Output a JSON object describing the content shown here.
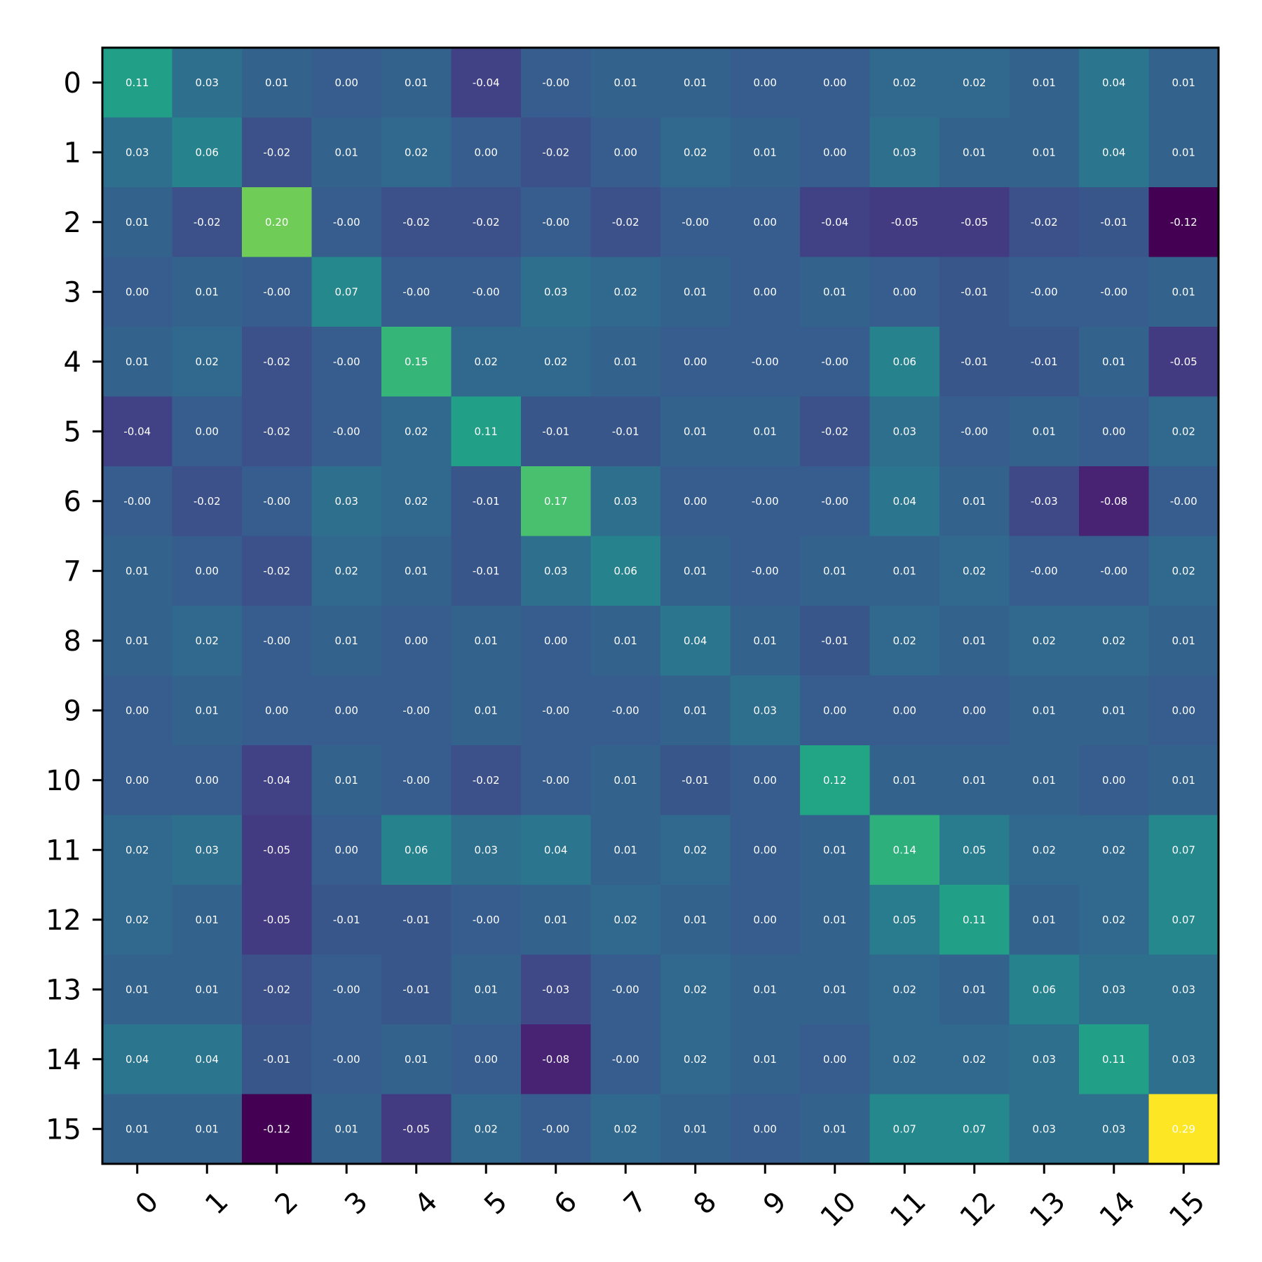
{
  "chart_data": {
    "type": "heatmap",
    "title": "",
    "xlabel": "",
    "ylabel": "",
    "colormap": "viridis",
    "vmin": -0.12,
    "vmax": 0.29,
    "grid": false,
    "legend": "none",
    "x_categories": [
      "0",
      "1",
      "2",
      "3",
      "4",
      "5",
      "6",
      "7",
      "8",
      "9",
      "10",
      "11",
      "12",
      "13",
      "14",
      "15"
    ],
    "y_categories": [
      "0",
      "1",
      "2",
      "3",
      "4",
      "5",
      "6",
      "7",
      "8",
      "9",
      "10",
      "11",
      "12",
      "13",
      "14",
      "15"
    ],
    "values": [
      [
        0.11,
        0.03,
        0.01,
        0.0,
        0.01,
        -0.04,
        -0.0,
        0.01,
        0.01,
        0.0,
        0.0,
        0.02,
        0.02,
        0.01,
        0.04,
        0.01
      ],
      [
        0.03,
        0.06,
        -0.02,
        0.01,
        0.02,
        0.0,
        -0.02,
        0.0,
        0.02,
        0.01,
        0.0,
        0.03,
        0.01,
        0.01,
        0.04,
        0.01
      ],
      [
        0.01,
        -0.02,
        0.2,
        -0.0,
        -0.02,
        -0.02,
        -0.0,
        -0.02,
        -0.0,
        0.0,
        -0.04,
        -0.05,
        -0.05,
        -0.02,
        -0.01,
        -0.12
      ],
      [
        0.0,
        0.01,
        -0.0,
        0.07,
        -0.0,
        -0.0,
        0.03,
        0.02,
        0.01,
        0.0,
        0.01,
        0.0,
        -0.01,
        -0.0,
        -0.0,
        0.01
      ],
      [
        0.01,
        0.02,
        -0.02,
        -0.0,
        0.15,
        0.02,
        0.02,
        0.01,
        0.0,
        -0.0,
        -0.0,
        0.06,
        -0.01,
        -0.01,
        0.01,
        -0.05
      ],
      [
        -0.04,
        0.0,
        -0.02,
        -0.0,
        0.02,
        0.11,
        -0.01,
        -0.01,
        0.01,
        0.01,
        -0.02,
        0.03,
        -0.0,
        0.01,
        0.0,
        0.02
      ],
      [
        -0.0,
        -0.02,
        -0.0,
        0.03,
        0.02,
        -0.01,
        0.17,
        0.03,
        0.0,
        -0.0,
        -0.0,
        0.04,
        0.01,
        -0.03,
        -0.08,
        -0.0
      ],
      [
        0.01,
        0.0,
        -0.02,
        0.02,
        0.01,
        -0.01,
        0.03,
        0.06,
        0.01,
        -0.0,
        0.01,
        0.01,
        0.02,
        -0.0,
        -0.0,
        0.02
      ],
      [
        0.01,
        0.02,
        -0.0,
        0.01,
        0.0,
        0.01,
        0.0,
        0.01,
        0.04,
        0.01,
        -0.01,
        0.02,
        0.01,
        0.02,
        0.02,
        0.01
      ],
      [
        0.0,
        0.01,
        0.0,
        0.0,
        -0.0,
        0.01,
        -0.0,
        -0.0,
        0.01,
        0.03,
        0.0,
        0.0,
        0.0,
        0.01,
        0.01,
        0.0
      ],
      [
        0.0,
        0.0,
        -0.04,
        0.01,
        -0.0,
        -0.02,
        -0.0,
        0.01,
        -0.01,
        0.0,
        0.12,
        0.01,
        0.01,
        0.01,
        0.0,
        0.01
      ],
      [
        0.02,
        0.03,
        -0.05,
        0.0,
        0.06,
        0.03,
        0.04,
        0.01,
        0.02,
        0.0,
        0.01,
        0.14,
        0.05,
        0.02,
        0.02,
        0.07
      ],
      [
        0.02,
        0.01,
        -0.05,
        -0.01,
        -0.01,
        -0.0,
        0.01,
        0.02,
        0.01,
        0.0,
        0.01,
        0.05,
        0.11,
        0.01,
        0.02,
        0.07
      ],
      [
        0.01,
        0.01,
        -0.02,
        -0.0,
        -0.01,
        0.01,
        -0.03,
        -0.0,
        0.02,
        0.01,
        0.01,
        0.02,
        0.01,
        0.06,
        0.03,
        0.03
      ],
      [
        0.04,
        0.04,
        -0.01,
        -0.0,
        0.01,
        0.0,
        -0.08,
        -0.0,
        0.02,
        0.01,
        0.0,
        0.02,
        0.02,
        0.03,
        0.11,
        0.03
      ],
      [
        0.01,
        0.01,
        -0.12,
        0.01,
        -0.05,
        0.02,
        -0.0,
        0.02,
        0.01,
        0.0,
        0.01,
        0.07,
        0.07,
        0.03,
        0.03,
        0.29
      ]
    ]
  }
}
